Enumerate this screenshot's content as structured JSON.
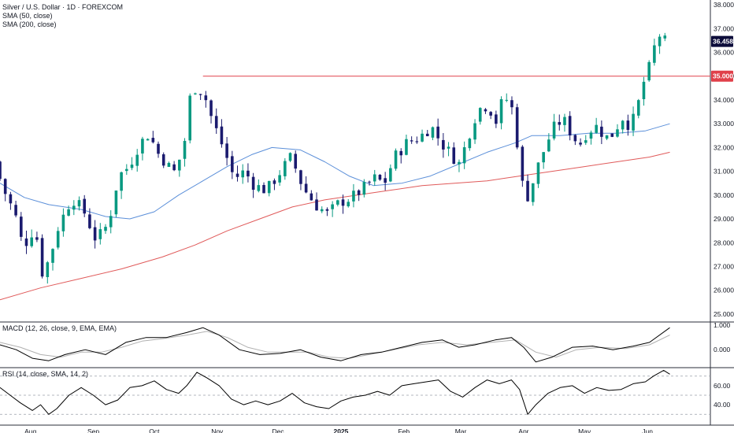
{
  "legend": {
    "title": "Silver / U.S. Dollar · 1D · FOREXCOM",
    "sma50": "SMA (50, close)",
    "sma200": "SMA (200, close)",
    "macd": "MACD (12, 26, close, 9, EMA, EMA)",
    "rsi": "RSI (14, close, SMA, 14, 2)"
  },
  "colors": {
    "up": "#089981",
    "down": "#1a1a6e",
    "sma50": "#5b8fd9",
    "sma200": "#e05a5a",
    "resistance": "#e0404a",
    "price_tag": "#0c0c3a",
    "macd_line": "#000000",
    "signal_line": "#b0b0b0",
    "rsi_line": "#000000"
  },
  "chart_data": {
    "type": "candlestick",
    "price_axis": {
      "ticks": [
        "38.000",
        "37.000",
        "36.000",
        "35.000",
        "34.000",
        "33.000",
        "32.000",
        "31.000",
        "30.000",
        "29.000",
        "28.000",
        "27.000",
        "26.000",
        "25.000"
      ],
      "ylim": [
        24.7,
        38.2
      ]
    },
    "time_axis": {
      "labels": [
        {
          "text": "Aug",
          "bold": false,
          "day": 15
        },
        {
          "text": "Sep",
          "bold": false,
          "day": 46
        },
        {
          "text": "Oct",
          "bold": false,
          "day": 76
        },
        {
          "text": "Nov",
          "bold": false,
          "day": 107
        },
        {
          "text": "Dec",
          "bold": false,
          "day": 137
        },
        {
          "text": "2025",
          "bold": true,
          "day": 168
        },
        {
          "text": "Feb",
          "bold": false,
          "day": 199
        },
        {
          "text": "Mar",
          "bold": false,
          "day": 227
        },
        {
          "text": "Apr",
          "bold": false,
          "day": 258
        },
        {
          "text": "May",
          "bold": false,
          "day": 288
        },
        {
          "text": "Jun",
          "bold": false,
          "day": 319
        }
      ],
      "xlim": [
        0,
        350
      ]
    },
    "resistance": {
      "value": 35.0,
      "label": "35.000",
      "start_day": 100
    },
    "last_price": {
      "value": 36.458,
      "label": "36.458"
    },
    "anchors": [
      {
        "day": 0,
        "price": 31.4
      },
      {
        "day": 4,
        "price": 30.3
      },
      {
        "day": 10,
        "price": 29.2
      },
      {
        "day": 14,
        "price": 27.8
      },
      {
        "day": 20,
        "price": 28.7
      },
      {
        "day": 23,
        "price": 26.7
      },
      {
        "day": 27,
        "price": 27.3
      },
      {
        "day": 31,
        "price": 28.6
      },
      {
        "day": 38,
        "price": 29.9
      },
      {
        "day": 44,
        "price": 29.3
      },
      {
        "day": 50,
        "price": 28.1
      },
      {
        "day": 56,
        "price": 28.8
      },
      {
        "day": 61,
        "price": 30.8
      },
      {
        "day": 66,
        "price": 31.2
      },
      {
        "day": 71,
        "price": 32.1
      },
      {
        "day": 76,
        "price": 32.6
      },
      {
        "day": 80,
        "price": 31.8
      },
      {
        "day": 85,
        "price": 31.3
      },
      {
        "day": 88,
        "price": 30.9
      },
      {
        "day": 93,
        "price": 31.9
      },
      {
        "day": 97,
        "price": 34.6
      },
      {
        "day": 103,
        "price": 34.3
      },
      {
        "day": 107,
        "price": 33.2
      },
      {
        "day": 113,
        "price": 31.9
      },
      {
        "day": 118,
        "price": 30.7
      },
      {
        "day": 123,
        "price": 31.0
      },
      {
        "day": 128,
        "price": 30.4
      },
      {
        "day": 134,
        "price": 30.2
      },
      {
        "day": 140,
        "price": 30.9
      },
      {
        "day": 146,
        "price": 31.6
      },
      {
        "day": 152,
        "price": 30.3
      },
      {
        "day": 158,
        "price": 29.6
      },
      {
        "day": 164,
        "price": 29.2
      },
      {
        "day": 170,
        "price": 29.7
      },
      {
        "day": 176,
        "price": 29.9
      },
      {
        "day": 182,
        "price": 30.3
      },
      {
        "day": 187,
        "price": 30.7
      },
      {
        "day": 192,
        "price": 30.5
      },
      {
        "day": 197,
        "price": 31.6
      },
      {
        "day": 203,
        "price": 32.2
      },
      {
        "day": 209,
        "price": 32.4
      },
      {
        "day": 215,
        "price": 32.9
      },
      {
        "day": 220,
        "price": 32.2
      },
      {
        "day": 224,
        "price": 31.8
      },
      {
        "day": 229,
        "price": 31.3
      },
      {
        "day": 233,
        "price": 32.4
      },
      {
        "day": 238,
        "price": 33.6
      },
      {
        "day": 243,
        "price": 33.8
      },
      {
        "day": 247,
        "price": 33.1
      },
      {
        "day": 251,
        "price": 34.2
      },
      {
        "day": 255,
        "price": 33.6
      },
      {
        "day": 259,
        "price": 31.3
      },
      {
        "day": 261,
        "price": 29.6
      },
      {
        "day": 265,
        "price": 30.5
      },
      {
        "day": 268,
        "price": 31.3
      },
      {
        "day": 272,
        "price": 32.2
      },
      {
        "day": 276,
        "price": 32.9
      },
      {
        "day": 280,
        "price": 33.2
      },
      {
        "day": 284,
        "price": 32.6
      },
      {
        "day": 288,
        "price": 32.1
      },
      {
        "day": 292,
        "price": 32.7
      },
      {
        "day": 297,
        "price": 32.9
      },
      {
        "day": 301,
        "price": 32.4
      },
      {
        "day": 305,
        "price": 32.6
      },
      {
        "day": 309,
        "price": 33.3
      },
      {
        "day": 313,
        "price": 32.9
      },
      {
        "day": 316,
        "price": 33.4
      },
      {
        "day": 319,
        "price": 34.6
      },
      {
        "day": 322,
        "price": 35.2
      },
      {
        "day": 325,
        "price": 36.2
      },
      {
        "day": 328,
        "price": 36.8
      },
      {
        "day": 330,
        "price": 36.458
      }
    ],
    "sma50": [
      {
        "day": 0,
        "price": 30.5
      },
      {
        "day": 12,
        "price": 29.9
      },
      {
        "day": 24,
        "price": 29.6
      },
      {
        "day": 40,
        "price": 29.4
      },
      {
        "day": 52,
        "price": 29.1
      },
      {
        "day": 64,
        "price": 29.0
      },
      {
        "day": 76,
        "price": 29.3
      },
      {
        "day": 88,
        "price": 30.0
      },
      {
        "day": 100,
        "price": 30.6
      },
      {
        "day": 112,
        "price": 31.2
      },
      {
        "day": 124,
        "price": 31.7
      },
      {
        "day": 134,
        "price": 32.0
      },
      {
        "day": 148,
        "price": 31.9
      },
      {
        "day": 160,
        "price": 31.4
      },
      {
        "day": 172,
        "price": 30.8
      },
      {
        "day": 184,
        "price": 30.4
      },
      {
        "day": 198,
        "price": 30.5
      },
      {
        "day": 212,
        "price": 30.8
      },
      {
        "day": 226,
        "price": 31.3
      },
      {
        "day": 240,
        "price": 31.8
      },
      {
        "day": 254,
        "price": 32.2
      },
      {
        "day": 262,
        "price": 32.5
      },
      {
        "day": 276,
        "price": 32.5
      },
      {
        "day": 290,
        "price": 32.6
      },
      {
        "day": 304,
        "price": 32.6
      },
      {
        "day": 318,
        "price": 32.7
      },
      {
        "day": 330,
        "price": 33.0
      }
    ],
    "sma200": [
      {
        "day": 0,
        "price": 25.6
      },
      {
        "day": 20,
        "price": 26.1
      },
      {
        "day": 40,
        "price": 26.5
      },
      {
        "day": 60,
        "price": 26.9
      },
      {
        "day": 80,
        "price": 27.4
      },
      {
        "day": 96,
        "price": 27.9
      },
      {
        "day": 112,
        "price": 28.5
      },
      {
        "day": 128,
        "price": 29.0
      },
      {
        "day": 144,
        "price": 29.5
      },
      {
        "day": 160,
        "price": 29.8
      },
      {
        "day": 176,
        "price": 30.0
      },
      {
        "day": 192,
        "price": 30.2
      },
      {
        "day": 208,
        "price": 30.4
      },
      {
        "day": 224,
        "price": 30.5
      },
      {
        "day": 240,
        "price": 30.6
      },
      {
        "day": 256,
        "price": 30.8
      },
      {
        "day": 272,
        "price": 31.0
      },
      {
        "day": 288,
        "price": 31.2
      },
      {
        "day": 304,
        "price": 31.4
      },
      {
        "day": 320,
        "price": 31.6
      },
      {
        "day": 330,
        "price": 31.8
      }
    ],
    "macd": {
      "axis_ticks": [
        {
          "label": "1.000",
          "value": 1.0
        },
        {
          "label": "0.000",
          "value": 0.0
        }
      ],
      "ylim": [
        -0.7,
        1.1
      ],
      "macd": [
        {
          "day": 0,
          "v": 0.2
        },
        {
          "day": 8,
          "v": 0.0
        },
        {
          "day": 16,
          "v": -0.35
        },
        {
          "day": 24,
          "v": -0.45
        },
        {
          "day": 32,
          "v": -0.2
        },
        {
          "day": 42,
          "v": 0.0
        },
        {
          "day": 52,
          "v": -0.2
        },
        {
          "day": 62,
          "v": 0.3
        },
        {
          "day": 72,
          "v": 0.5
        },
        {
          "day": 82,
          "v": 0.5
        },
        {
          "day": 92,
          "v": 0.7
        },
        {
          "day": 100,
          "v": 0.9
        },
        {
          "day": 108,
          "v": 0.6
        },
        {
          "day": 118,
          "v": 0.0
        },
        {
          "day": 128,
          "v": -0.2
        },
        {
          "day": 138,
          "v": -0.15
        },
        {
          "day": 148,
          "v": 0.0
        },
        {
          "day": 158,
          "v": -0.3
        },
        {
          "day": 168,
          "v": -0.45
        },
        {
          "day": 178,
          "v": -0.2
        },
        {
          "day": 188,
          "v": -0.1
        },
        {
          "day": 198,
          "v": 0.1
        },
        {
          "day": 208,
          "v": 0.3
        },
        {
          "day": 218,
          "v": 0.4
        },
        {
          "day": 226,
          "v": 0.1
        },
        {
          "day": 234,
          "v": 0.2
        },
        {
          "day": 244,
          "v": 0.4
        },
        {
          "day": 252,
          "v": 0.5
        },
        {
          "day": 258,
          "v": 0.1
        },
        {
          "day": 264,
          "v": -0.5
        },
        {
          "day": 272,
          "v": -0.3
        },
        {
          "day": 282,
          "v": 0.1
        },
        {
          "day": 292,
          "v": 0.15
        },
        {
          "day": 302,
          "v": 0.0
        },
        {
          "day": 312,
          "v": 0.15
        },
        {
          "day": 320,
          "v": 0.3
        },
        {
          "day": 330,
          "v": 0.9
        }
      ],
      "signal": [
        {
          "day": 0,
          "v": 0.3
        },
        {
          "day": 10,
          "v": 0.1
        },
        {
          "day": 20,
          "v": -0.2
        },
        {
          "day": 30,
          "v": -0.3
        },
        {
          "day": 40,
          "v": -0.1
        },
        {
          "day": 50,
          "v": -0.1
        },
        {
          "day": 60,
          "v": 0.1
        },
        {
          "day": 70,
          "v": 0.35
        },
        {
          "day": 80,
          "v": 0.45
        },
        {
          "day": 92,
          "v": 0.6
        },
        {
          "day": 102,
          "v": 0.75
        },
        {
          "day": 112,
          "v": 0.5
        },
        {
          "day": 122,
          "v": 0.1
        },
        {
          "day": 132,
          "v": -0.1
        },
        {
          "day": 142,
          "v": -0.1
        },
        {
          "day": 152,
          "v": -0.1
        },
        {
          "day": 162,
          "v": -0.3
        },
        {
          "day": 172,
          "v": -0.35
        },
        {
          "day": 182,
          "v": -0.2
        },
        {
          "day": 194,
          "v": 0.0
        },
        {
          "day": 206,
          "v": 0.2
        },
        {
          "day": 218,
          "v": 0.3
        },
        {
          "day": 230,
          "v": 0.2
        },
        {
          "day": 242,
          "v": 0.3
        },
        {
          "day": 254,
          "v": 0.4
        },
        {
          "day": 264,
          "v": -0.1
        },
        {
          "day": 274,
          "v": -0.3
        },
        {
          "day": 284,
          "v": 0.0
        },
        {
          "day": 296,
          "v": 0.1
        },
        {
          "day": 308,
          "v": 0.05
        },
        {
          "day": 320,
          "v": 0.2
        },
        {
          "day": 330,
          "v": 0.6
        }
      ]
    },
    "rsi": {
      "axis_ticks": [
        {
          "label": "60.00",
          "value": 60
        },
        {
          "label": "40.00",
          "value": 40
        }
      ],
      "bands": [
        70,
        50,
        30
      ],
      "ylim": [
        22,
        78
      ],
      "values": [
        {
          "day": 0,
          "v": 58
        },
        {
          "day": 5,
          "v": 50
        },
        {
          "day": 10,
          "v": 42
        },
        {
          "day": 16,
          "v": 34
        },
        {
          "day": 20,
          "v": 40
        },
        {
          "day": 24,
          "v": 30
        },
        {
          "day": 28,
          "v": 36
        },
        {
          "day": 34,
          "v": 50
        },
        {
          "day": 40,
          "v": 58
        },
        {
          "day": 46,
          "v": 50
        },
        {
          "day": 52,
          "v": 40
        },
        {
          "day": 58,
          "v": 45
        },
        {
          "day": 64,
          "v": 58
        },
        {
          "day": 70,
          "v": 60
        },
        {
          "day": 76,
          "v": 65
        },
        {
          "day": 82,
          "v": 56
        },
        {
          "day": 88,
          "v": 52
        },
        {
          "day": 92,
          "v": 60
        },
        {
          "day": 97,
          "v": 74
        },
        {
          "day": 102,
          "v": 68
        },
        {
          "day": 108,
          "v": 60
        },
        {
          "day": 114,
          "v": 46
        },
        {
          "day": 120,
          "v": 40
        },
        {
          "day": 126,
          "v": 44
        },
        {
          "day": 132,
          "v": 40
        },
        {
          "day": 138,
          "v": 44
        },
        {
          "day": 144,
          "v": 52
        },
        {
          "day": 150,
          "v": 42
        },
        {
          "day": 156,
          "v": 38
        },
        {
          "day": 162,
          "v": 36
        },
        {
          "day": 168,
          "v": 44
        },
        {
          "day": 174,
          "v": 48
        },
        {
          "day": 180,
          "v": 50
        },
        {
          "day": 186,
          "v": 54
        },
        {
          "day": 192,
          "v": 50
        },
        {
          "day": 198,
          "v": 60
        },
        {
          "day": 204,
          "v": 62
        },
        {
          "day": 210,
          "v": 64
        },
        {
          "day": 216,
          "v": 66
        },
        {
          "day": 222,
          "v": 54
        },
        {
          "day": 228,
          "v": 48
        },
        {
          "day": 234,
          "v": 58
        },
        {
          "day": 240,
          "v": 66
        },
        {
          "day": 246,
          "v": 62
        },
        {
          "day": 252,
          "v": 66
        },
        {
          "day": 256,
          "v": 56
        },
        {
          "day": 260,
          "v": 30
        },
        {
          "day": 264,
          "v": 40
        },
        {
          "day": 270,
          "v": 52
        },
        {
          "day": 276,
          "v": 58
        },
        {
          "day": 282,
          "v": 60
        },
        {
          "day": 288,
          "v": 52
        },
        {
          "day": 294,
          "v": 58
        },
        {
          "day": 300,
          "v": 55
        },
        {
          "day": 306,
          "v": 56
        },
        {
          "day": 312,
          "v": 62
        },
        {
          "day": 318,
          "v": 64
        },
        {
          "day": 322,
          "v": 70
        },
        {
          "day": 327,
          "v": 76
        },
        {
          "day": 330,
          "v": 72
        }
      ]
    }
  }
}
